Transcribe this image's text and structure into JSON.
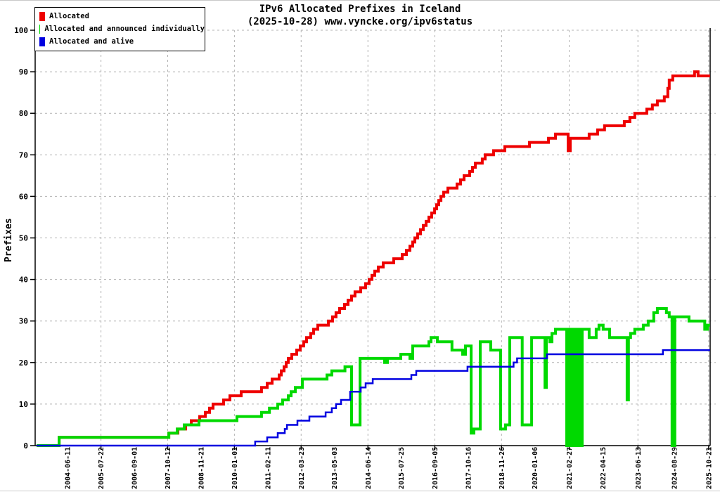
{
  "title": "IPv6 Allocated Prefixes in Iceland",
  "subtitle": "(2025-10-28) www.vyncke.org/ipv6status",
  "legend": [
    {
      "label": "Allocated",
      "color": "#ee0000"
    },
    {
      "label": "Allocated and announced individually",
      "color": "#00d900"
    },
    {
      "label": "Allocated and alive",
      "color": "#0000e0"
    }
  ],
  "chart_data": {
    "type": "line",
    "title": "IPv6 Allocated Prefixes in Iceland",
    "subtitle": "(2025-10-28) www.vyncke.org/ipv6status",
    "xlabel": "",
    "ylabel": "Prefixes",
    "ylim": [
      0,
      100
    ],
    "y_ticks": [
      0,
      10,
      20,
      30,
      40,
      50,
      60,
      70,
      80,
      90,
      100
    ],
    "x_domain": [
      "2003-05-13",
      "2025-11-08"
    ],
    "x_tick_labels": [
      "2004-06-11",
      "2005-07-22",
      "2006-09-01",
      "2007-10-12",
      "2008-11-21",
      "2010-01-01",
      "2011-02-11",
      "2012-03-23",
      "2013-05-03",
      "2014-06-14",
      "2015-07-25",
      "2016-09-05",
      "2017-10-16",
      "2018-11-26",
      "2020-01-06",
      "2021-02-27",
      "2022-04-15",
      "2023-06-13",
      "2024-08-29",
      "2025-10-21"
    ],
    "grid": "dashed",
    "legend_position": "top-left",
    "series": [
      {
        "name": "Allocated",
        "color": "#ee0000",
        "points": [
          [
            "2003-05-31",
            0
          ],
          [
            "2004-02-29",
            2
          ],
          [
            "2007-10-26",
            3
          ],
          [
            "2008-02-13",
            4
          ],
          [
            "2008-05-17",
            5
          ],
          [
            "2008-07-25",
            6
          ],
          [
            "2008-11-04",
            7
          ],
          [
            "2009-01-12",
            8
          ],
          [
            "2009-03-04",
            9
          ],
          [
            "2009-04-16",
            10
          ],
          [
            "2009-08-22",
            11
          ],
          [
            "2009-11-07",
            12
          ],
          [
            "2010-03-24",
            13
          ],
          [
            "2010-11-27",
            14
          ],
          [
            "2011-02-04",
            15
          ],
          [
            "2011-04-05",
            16
          ],
          [
            "2011-06-29",
            17
          ],
          [
            "2011-07-25",
            18
          ],
          [
            "2011-08-28",
            19
          ],
          [
            "2011-09-23",
            20
          ],
          [
            "2011-10-19",
            21
          ],
          [
            "2011-11-30",
            22
          ],
          [
            "2012-01-29",
            23
          ],
          [
            "2012-03-12",
            24
          ],
          [
            "2012-04-24",
            25
          ],
          [
            "2012-05-28",
            26
          ],
          [
            "2012-07-18",
            27
          ],
          [
            "2012-08-22",
            28
          ],
          [
            "2012-10-12",
            29
          ],
          [
            "2013-02-17",
            30
          ],
          [
            "2013-04-10",
            31
          ],
          [
            "2013-05-22",
            32
          ],
          [
            "2013-07-04",
            33
          ],
          [
            "2013-09-02",
            34
          ],
          [
            "2013-10-15",
            35
          ],
          [
            "2013-11-27",
            36
          ],
          [
            "2014-01-08",
            37
          ],
          [
            "2014-03-18",
            38
          ],
          [
            "2014-05-17",
            39
          ],
          [
            "2014-06-29",
            40
          ],
          [
            "2014-08-02",
            41
          ],
          [
            "2014-09-05",
            42
          ],
          [
            "2014-10-18",
            43
          ],
          [
            "2014-12-17",
            44
          ],
          [
            "2015-04-24",
            45
          ],
          [
            "2015-08-05",
            46
          ],
          [
            "2015-09-25",
            47
          ],
          [
            "2015-11-07",
            48
          ],
          [
            "2015-12-11",
            49
          ],
          [
            "2016-01-06",
            50
          ],
          [
            "2016-02-09",
            51
          ],
          [
            "2016-03-14",
            52
          ],
          [
            "2016-04-18",
            53
          ],
          [
            "2016-05-22",
            54
          ],
          [
            "2016-06-25",
            55
          ],
          [
            "2016-07-29",
            56
          ],
          [
            "2016-09-02",
            57
          ],
          [
            "2016-09-27",
            58
          ],
          [
            "2016-10-23",
            59
          ],
          [
            "2016-11-18",
            60
          ],
          [
            "2016-12-22",
            61
          ],
          [
            "2017-02-11",
            62
          ],
          [
            "2017-06-02",
            63
          ],
          [
            "2017-07-15",
            64
          ],
          [
            "2017-08-27",
            65
          ],
          [
            "2017-11-03",
            66
          ],
          [
            "2017-12-08",
            67
          ],
          [
            "2018-01-11",
            68
          ],
          [
            "2018-04-06",
            69
          ],
          [
            "2018-05-11",
            70
          ],
          [
            "2018-08-21",
            71
          ],
          [
            "2019-01-05",
            72
          ],
          [
            "2019-11-01",
            73
          ],
          [
            "2020-06-19",
            74
          ],
          [
            "2020-09-12",
            75
          ],
          [
            "2021-02-13",
            71
          ],
          [
            "2021-03-11",
            74
          ],
          [
            "2021-10-27",
            75
          ],
          [
            "2022-02-07",
            76
          ],
          [
            "2022-05-03",
            77
          ],
          [
            "2022-12-29",
            78
          ],
          [
            "2023-03-07",
            79
          ],
          [
            "2023-05-06",
            80
          ],
          [
            "2023-09-29",
            81
          ],
          [
            "2023-12-06",
            82
          ],
          [
            "2024-02-04",
            83
          ],
          [
            "2024-04-29",
            84
          ],
          [
            "2024-06-11",
            86
          ],
          [
            "2024-06-28",
            88
          ],
          [
            "2024-08-10",
            89
          ],
          [
            "2025-05-02",
            90
          ],
          [
            "2025-06-14",
            89
          ]
        ]
      },
      {
        "name": "Allocated and announced individually",
        "color": "#00d900",
        "points": [
          [
            "2003-05-31",
            0
          ],
          [
            "2004-02-29",
            2
          ],
          [
            "2007-10-26",
            3
          ],
          [
            "2008-02-05",
            4
          ],
          [
            "2008-04-30",
            5
          ],
          [
            "2008-10-27",
            6
          ],
          [
            "2010-02-01",
            7
          ],
          [
            "2010-11-27",
            8
          ],
          [
            "2011-03-03",
            9
          ],
          [
            "2011-06-12",
            10
          ],
          [
            "2011-08-11",
            11
          ],
          [
            "2011-10-19",
            12
          ],
          [
            "2011-11-22",
            13
          ],
          [
            "2012-01-12",
            14
          ],
          [
            "2012-04-07",
            16
          ],
          [
            "2013-02-01",
            17
          ],
          [
            "2013-03-31",
            18
          ],
          [
            "2013-09-07",
            19
          ],
          [
            "2013-11-27",
            5
          ],
          [
            "2014-03-10",
            21
          ],
          [
            "2015-01-03",
            20
          ],
          [
            "2015-02-06",
            21
          ],
          [
            "2015-07-19",
            22
          ],
          [
            "2015-11-07",
            21
          ],
          [
            "2015-12-11",
            24
          ],
          [
            "2016-06-25",
            25
          ],
          [
            "2016-07-21",
            26
          ],
          [
            "2016-10-06",
            25
          ],
          [
            "2017-04-02",
            23
          ],
          [
            "2017-08-10",
            22
          ],
          [
            "2017-09-13",
            24
          ],
          [
            "2017-11-21",
            3
          ],
          [
            "2017-12-25",
            4
          ],
          [
            "2018-03-12",
            25
          ],
          [
            "2018-07-17",
            23
          ],
          [
            "2018-11-14",
            4
          ],
          [
            "2019-01-13",
            5
          ],
          [
            "2019-03-06",
            26
          ],
          [
            "2019-08-05",
            5
          ],
          [
            "2019-11-27",
            26
          ],
          [
            "2020-05-08",
            14
          ],
          [
            "2020-05-25",
            26
          ],
          [
            "2020-07-07",
            25
          ],
          [
            "2020-08-01",
            27
          ],
          [
            "2020-09-12",
            28
          ],
          [
            "2021-01-27",
            0
          ],
          [
            "2021-02-22",
            28
          ],
          [
            "2021-03-20",
            0
          ],
          [
            "2021-04-14",
            28
          ],
          [
            "2021-05-10",
            0
          ],
          [
            "2021-06-13",
            28
          ],
          [
            "2021-07-09",
            0
          ],
          [
            "2021-08-04",
            28
          ],
          [
            "2021-10-27",
            26
          ],
          [
            "2022-01-21",
            28
          ],
          [
            "2022-02-24",
            29
          ],
          [
            "2022-04-16",
            28
          ],
          [
            "2022-07-03",
            26
          ],
          [
            "2023-02-01",
            11
          ],
          [
            "2023-02-18",
            26
          ],
          [
            "2023-03-15",
            27
          ],
          [
            "2023-05-06",
            28
          ],
          [
            "2023-08-17",
            29
          ],
          [
            "2023-10-16",
            30
          ],
          [
            "2023-12-23",
            32
          ],
          [
            "2024-02-04",
            33
          ],
          [
            "2024-05-25",
            32
          ],
          [
            "2024-06-28",
            31
          ],
          [
            "2024-08-01",
            0
          ],
          [
            "2024-09-04",
            31
          ],
          [
            "2025-02-23",
            30
          ],
          [
            "2025-09-03",
            28
          ],
          [
            "2025-10-07",
            29
          ]
        ]
      },
      {
        "name": "Allocated and alive",
        "color": "#0000e0",
        "points": [
          [
            "2003-05-31",
            0
          ],
          [
            "2010-09-11",
            1
          ],
          [
            "2011-02-04",
            2
          ],
          [
            "2011-06-12",
            3
          ],
          [
            "2011-09-06",
            4
          ],
          [
            "2011-10-02",
            5
          ],
          [
            "2012-02-07",
            6
          ],
          [
            "2012-07-01",
            7
          ],
          [
            "2013-01-15",
            8
          ],
          [
            "2013-03-31",
            9
          ],
          [
            "2013-05-22",
            10
          ],
          [
            "2013-07-21",
            11
          ],
          [
            "2013-11-10",
            13
          ],
          [
            "2014-03-18",
            14
          ],
          [
            "2014-05-17",
            15
          ],
          [
            "2014-08-11",
            16
          ],
          [
            "2015-11-24",
            17
          ],
          [
            "2016-01-23",
            18
          ],
          [
            "2017-10-08",
            19
          ],
          [
            "2019-04-21",
            20
          ],
          [
            "2019-06-03",
            21
          ],
          [
            "2020-06-02",
            22
          ],
          [
            "2024-04-12",
            23
          ]
        ]
      }
    ]
  }
}
